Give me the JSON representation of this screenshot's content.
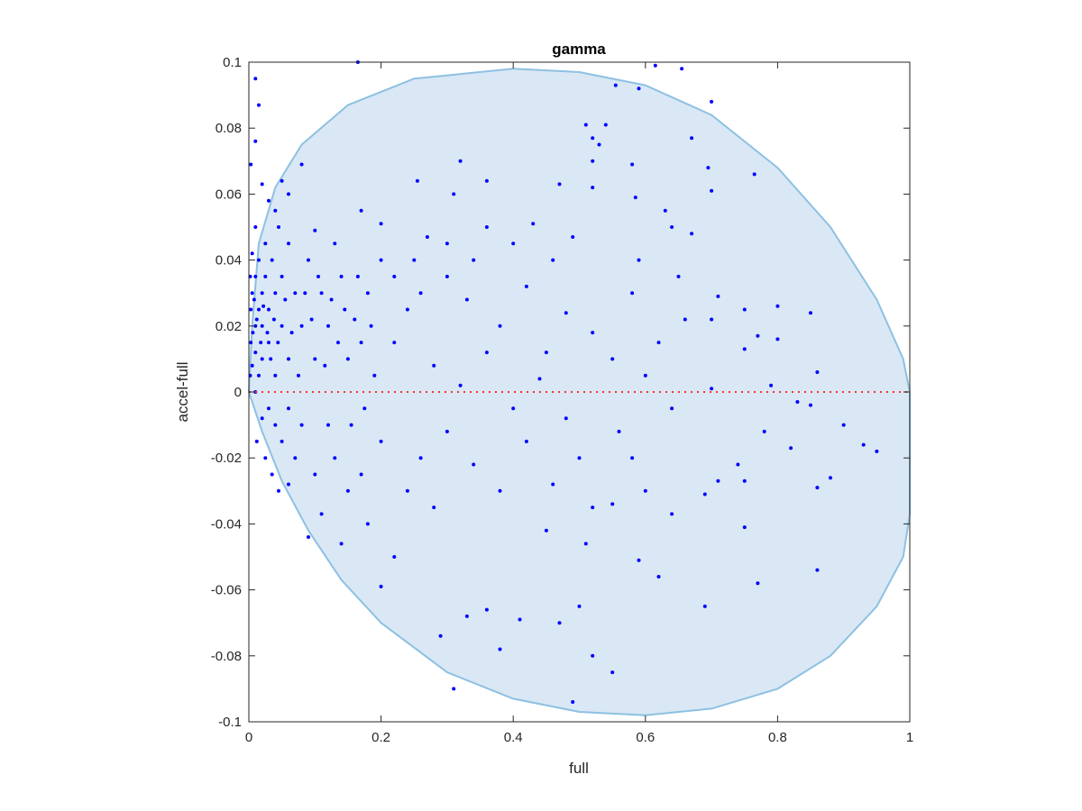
{
  "chart_data": {
    "type": "scatter",
    "title": "gamma",
    "xlabel": "full",
    "ylabel": "accel-full",
    "xlim": [
      0,
      1
    ],
    "ylim": [
      -0.1,
      0.1
    ],
    "xticks": [
      0,
      0.2,
      0.4,
      0.6,
      0.8,
      1
    ],
    "xtick_labels": [
      "0",
      "0.2",
      "0.4",
      "0.6",
      "0.8",
      "1"
    ],
    "yticks": [
      -0.1,
      -0.08,
      -0.06,
      -0.04,
      -0.02,
      0,
      0.02,
      0.04,
      0.06,
      0.08,
      0.1
    ],
    "ytick_labels": [
      "-0.1",
      "-0.08",
      "-0.06",
      "-0.04",
      "-0.02",
      "0",
      "0.02",
      "0.04",
      "0.06",
      "0.08",
      "0.1"
    ],
    "grid": false,
    "colors": {
      "points": "#0000ff",
      "region_fill": "#d9e8f4",
      "region_edge": "#8ec0e2",
      "zero_line": "#ff3030"
    },
    "reference_line": {
      "y": 0,
      "style": "dotted"
    },
    "region_outline": [
      [
        0,
        0
      ],
      [
        0.005,
        0.02
      ],
      [
        0.015,
        0.045
      ],
      [
        0.04,
        0.062
      ],
      [
        0.08,
        0.075
      ],
      [
        0.15,
        0.087
      ],
      [
        0.25,
        0.095
      ],
      [
        0.4,
        0.098
      ],
      [
        0.5,
        0.097
      ],
      [
        0.6,
        0.093
      ],
      [
        0.7,
        0.084
      ],
      [
        0.8,
        0.068
      ],
      [
        0.88,
        0.05
      ],
      [
        0.95,
        0.028
      ],
      [
        0.99,
        0.01
      ],
      [
        1,
        0
      ],
      [
        1,
        -0.037
      ],
      [
        0.99,
        -0.05
      ],
      [
        0.95,
        -0.065
      ],
      [
        0.88,
        -0.08
      ],
      [
        0.8,
        -0.09
      ],
      [
        0.7,
        -0.096
      ],
      [
        0.6,
        -0.098
      ],
      [
        0.5,
        -0.097
      ],
      [
        0.4,
        -0.093
      ],
      [
        0.3,
        -0.085
      ],
      [
        0.2,
        -0.07
      ],
      [
        0.14,
        -0.057
      ],
      [
        0.09,
        -0.042
      ],
      [
        0.05,
        -0.027
      ],
      [
        0.02,
        -0.012
      ],
      [
        0,
        0
      ]
    ],
    "points": [
      [
        0.01,
        0.095
      ],
      [
        0.015,
        0.087
      ],
      [
        0.165,
        0.1
      ],
      [
        0.615,
        0.099
      ],
      [
        0.655,
        0.098
      ],
      [
        0.7,
        0.088
      ],
      [
        0.555,
        0.093
      ],
      [
        0.59,
        0.092
      ],
      [
        0.51,
        0.081
      ],
      [
        0.54,
        0.081
      ],
      [
        0.67,
        0.077
      ],
      [
        0.52,
        0.077
      ],
      [
        0.53,
        0.075
      ],
      [
        0.32,
        0.07
      ],
      [
        0.58,
        0.069
      ],
      [
        0.08,
        0.069
      ],
      [
        0.01,
        0.076
      ],
      [
        0.003,
        0.069
      ],
      [
        0.52,
        0.07
      ],
      [
        0.695,
        0.068
      ],
      [
        0.765,
        0.066
      ],
      [
        0.05,
        0.064
      ],
      [
        0.255,
        0.064
      ],
      [
        0.36,
        0.064
      ],
      [
        0.47,
        0.063
      ],
      [
        0.52,
        0.062
      ],
      [
        0.7,
        0.061
      ],
      [
        0.31,
        0.06
      ],
      [
        0.585,
        0.059
      ],
      [
        0.06,
        0.06
      ],
      [
        0.63,
        0.055
      ],
      [
        0.64,
        0.05
      ],
      [
        0.67,
        0.048
      ],
      [
        0.43,
        0.051
      ],
      [
        0.2,
        0.051
      ],
      [
        0.17,
        0.055
      ],
      [
        0.1,
        0.049
      ],
      [
        0.27,
        0.047
      ],
      [
        0.36,
        0.05
      ],
      [
        0.49,
        0.047
      ],
      [
        0.59,
        0.04
      ],
      [
        0.65,
        0.035
      ],
      [
        0.71,
        0.029
      ],
      [
        0.75,
        0.025
      ],
      [
        0.8,
        0.026
      ],
      [
        0.85,
        0.024
      ],
      [
        0.7,
        0.022
      ],
      [
        0.77,
        0.017
      ],
      [
        0.8,
        0.016
      ],
      [
        0.75,
        0.013
      ],
      [
        0.86,
        0.006
      ],
      [
        0.79,
        0.002
      ],
      [
        0.7,
        0.001
      ],
      [
        0.83,
        -0.003
      ],
      [
        0.85,
        -0.004
      ],
      [
        0.9,
        -0.01
      ],
      [
        0.93,
        -0.016
      ],
      [
        0.95,
        -0.018
      ],
      [
        0.88,
        -0.026
      ],
      [
        0.86,
        -0.029
      ],
      [
        0.82,
        -0.017
      ],
      [
        0.78,
        -0.012
      ],
      [
        0.74,
        -0.022
      ],
      [
        0.71,
        -0.027
      ],
      [
        0.75,
        -0.027
      ],
      [
        0.75,
        -0.041
      ],
      [
        0.69,
        -0.031
      ],
      [
        0.64,
        -0.037
      ],
      [
        0.62,
        -0.056
      ],
      [
        0.59,
        -0.051
      ],
      [
        0.69,
        -0.065
      ],
      [
        0.77,
        -0.058
      ],
      [
        0.86,
        -0.054
      ],
      [
        0.55,
        -0.085
      ],
      [
        0.52,
        -0.08
      ],
      [
        0.49,
        -0.094
      ],
      [
        0.31,
        -0.09
      ],
      [
        0.38,
        -0.078
      ],
      [
        0.29,
        -0.074
      ],
      [
        0.41,
        -0.069
      ],
      [
        0.47,
        -0.07
      ],
      [
        0.5,
        -0.065
      ],
      [
        0.36,
        -0.066
      ],
      [
        0.33,
        -0.068
      ],
      [
        0.51,
        -0.046
      ],
      [
        0.55,
        -0.034
      ],
      [
        0.45,
        -0.042
      ],
      [
        0.2,
        -0.059
      ],
      [
        0.14,
        -0.046
      ],
      [
        0.09,
        -0.044
      ],
      [
        0.11,
        -0.037
      ],
      [
        0.22,
        -0.05
      ],
      [
        0.28,
        -0.035
      ],
      [
        0.3,
        0.035
      ],
      [
        0.33,
        0.028
      ],
      [
        0.38,
        0.02
      ],
      [
        0.42,
        0.032
      ],
      [
        0.45,
        0.012
      ],
      [
        0.48,
        0.024
      ],
      [
        0.52,
        0.018
      ],
      [
        0.55,
        0.01
      ],
      [
        0.58,
        0.03
      ],
      [
        0.6,
        0.005
      ],
      [
        0.62,
        0.015
      ],
      [
        0.64,
        -0.005
      ],
      [
        0.66,
        0.022
      ],
      [
        0.56,
        -0.012
      ],
      [
        0.5,
        -0.02
      ],
      [
        0.46,
        -0.028
      ],
      [
        0.42,
        -0.015
      ],
      [
        0.38,
        -0.03
      ],
      [
        0.34,
        -0.022
      ],
      [
        0.3,
        -0.012
      ],
      [
        0.26,
        -0.02
      ],
      [
        0.24,
        -0.03
      ],
      [
        0.22,
        0.015
      ],
      [
        0.24,
        0.025
      ],
      [
        0.26,
        0.03
      ],
      [
        0.28,
        0.008
      ],
      [
        0.32,
        0.002
      ],
      [
        0.36,
        0.012
      ],
      [
        0.4,
        -0.005
      ],
      [
        0.44,
        0.004
      ],
      [
        0.48,
        -0.008
      ],
      [
        0.52,
        -0.035
      ],
      [
        0.58,
        -0.02
      ],
      [
        0.6,
        -0.03
      ],
      [
        0.46,
        0.04
      ],
      [
        0.4,
        0.045
      ],
      [
        0.34,
        0.04
      ],
      [
        0.3,
        0.045
      ],
      [
        0.25,
        0.04
      ],
      [
        0.22,
        0.035
      ],
      [
        0.2,
        0.04
      ],
      [
        0.18,
        0.03
      ],
      [
        0.16,
        0.022
      ],
      [
        0.15,
        0.01
      ],
      [
        0.14,
        0.035
      ],
      [
        0.13,
        0.045
      ],
      [
        0.12,
        0.02
      ],
      [
        0.12,
        -0.01
      ],
      [
        0.13,
        -0.02
      ],
      [
        0.15,
        -0.03
      ],
      [
        0.17,
        -0.025
      ],
      [
        0.18,
        -0.04
      ],
      [
        0.2,
        -0.015
      ],
      [
        0.19,
        0.005
      ],
      [
        0.17,
        0.015
      ],
      [
        0.11,
        0.03
      ],
      [
        0.1,
        0.01
      ],
      [
        0.1,
        -0.025
      ],
      [
        0.09,
        0.04
      ],
      [
        0.08,
        0.02
      ],
      [
        0.08,
        -0.01
      ],
      [
        0.07,
        0.03
      ],
      [
        0.07,
        -0.02
      ],
      [
        0.06,
        0.045
      ],
      [
        0.06,
        0.01
      ],
      [
        0.06,
        -0.005
      ],
      [
        0.05,
        0.035
      ],
      [
        0.05,
        0.02
      ],
      [
        0.05,
        -0.015
      ],
      [
        0.045,
        0.05
      ],
      [
        0.04,
        0.03
      ],
      [
        0.04,
        0.005
      ],
      [
        0.04,
        -0.01
      ],
      [
        0.035,
        0.04
      ],
      [
        0.03,
        0.025
      ],
      [
        0.03,
        0.015
      ],
      [
        0.03,
        -0.005
      ],
      [
        0.025,
        0.045
      ],
      [
        0.025,
        0.035
      ],
      [
        0.02,
        0.03
      ],
      [
        0.02,
        0.02
      ],
      [
        0.02,
        0.01
      ],
      [
        0.02,
        -0.008
      ],
      [
        0.015,
        0.04
      ],
      [
        0.015,
        0.025
      ],
      [
        0.015,
        0.005
      ],
      [
        0.01,
        0.05
      ],
      [
        0.01,
        0.035
      ],
      [
        0.01,
        0.02
      ],
      [
        0.01,
        0.012
      ],
      [
        0.01,
        0.0
      ],
      [
        0.008,
        0.028
      ],
      [
        0.006,
        0.018
      ],
      [
        0.005,
        0.042
      ],
      [
        0.005,
        0.03
      ],
      [
        0.005,
        0.008
      ],
      [
        0.003,
        0.025
      ],
      [
        0.003,
        0.015
      ],
      [
        0.002,
        0.035
      ],
      [
        0.002,
        0.005
      ],
      [
        0.012,
        0.022
      ],
      [
        0.018,
        0.015
      ],
      [
        0.022,
        0.026
      ],
      [
        0.028,
        0.018
      ],
      [
        0.033,
        0.01
      ],
      [
        0.038,
        0.022
      ],
      [
        0.044,
        0.015
      ],
      [
        0.055,
        0.028
      ],
      [
        0.065,
        0.018
      ],
      [
        0.075,
        0.005
      ],
      [
        0.085,
        0.03
      ],
      [
        0.095,
        0.022
      ],
      [
        0.105,
        0.035
      ],
      [
        0.115,
        0.008
      ],
      [
        0.125,
        0.028
      ],
      [
        0.135,
        0.015
      ],
      [
        0.145,
        0.025
      ],
      [
        0.155,
        -0.01
      ],
      [
        0.165,
        0.035
      ],
      [
        0.175,
        -0.005
      ],
      [
        0.185,
        0.02
      ],
      [
        0.03,
        0.058
      ],
      [
        0.02,
        0.063
      ],
      [
        0.04,
        0.055
      ],
      [
        0.012,
        -0.015
      ],
      [
        0.025,
        -0.02
      ],
      [
        0.035,
        -0.025
      ],
      [
        0.045,
        -0.03
      ],
      [
        0.06,
        -0.028
      ]
    ]
  }
}
